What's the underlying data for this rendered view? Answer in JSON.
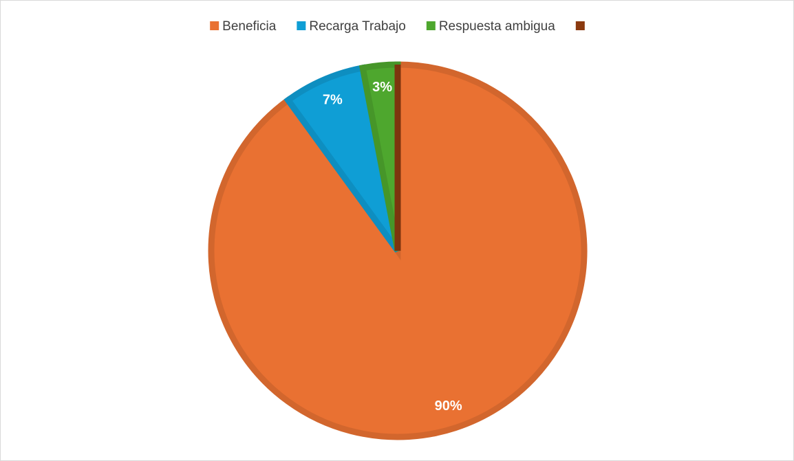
{
  "chart_data": {
    "type": "pie",
    "categories": [
      "Beneficia",
      "Recarga Trabajo",
      "Respuesta ambigua",
      null
    ],
    "values": [
      90,
      7,
      3,
      0
    ],
    "value_labels": [
      "90%",
      "7%",
      "3%",
      null
    ],
    "colors": [
      "#e97132",
      "#0f9ed5",
      "#4ea72e",
      "#8b3a0f"
    ],
    "legend": "top"
  }
}
